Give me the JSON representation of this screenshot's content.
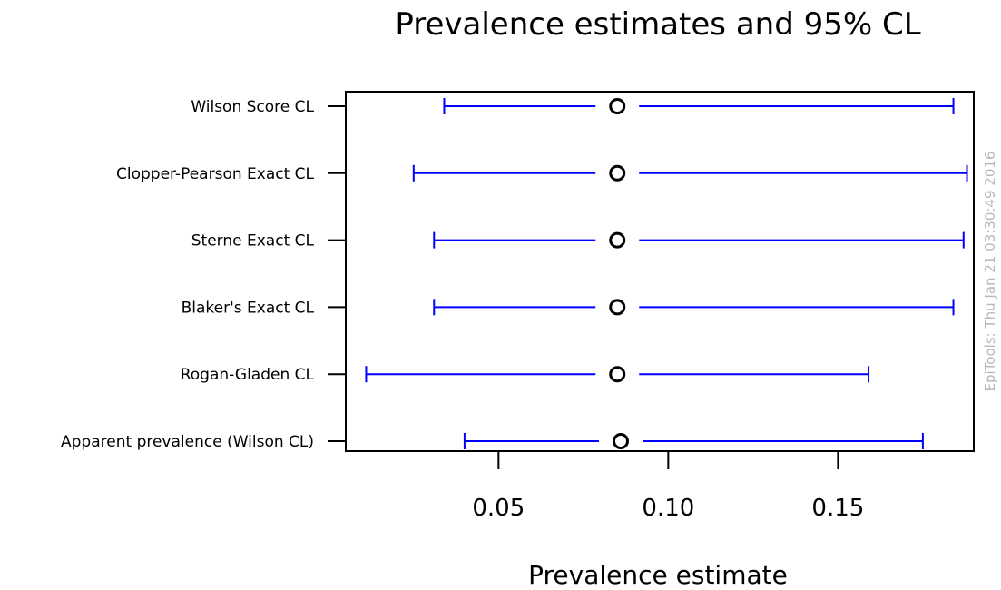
{
  "chart_data": {
    "type": "scatter",
    "title": "Prevalence estimates and 95% CL",
    "xlabel": "Prevalence estimate",
    "ylabel": "",
    "xlim": [
      0.005,
      0.19
    ],
    "xticks": [
      0.05,
      0.1,
      0.15
    ],
    "xtick_labels": [
      "0.05",
      "0.10",
      "0.15"
    ],
    "grid": false,
    "point_marker": "open-circle",
    "interval_color": "#0000ff",
    "watermark": "EpiTools: Thu Jan 21 03:30:49 2016",
    "categories": [
      "Wilson Score CL",
      "Clopper-Pearson Exact CL",
      "Sterne Exact CL",
      "Blaker's Exact CL",
      "Rogan-Gladen CL",
      "Apparent prevalence (Wilson CL)"
    ],
    "estimates": [
      0.085,
      0.085,
      0.085,
      0.085,
      0.085,
      0.086
    ],
    "lower": [
      0.034,
      0.025,
      0.031,
      0.031,
      0.011,
      0.04
    ],
    "upper": [
      0.184,
      0.188,
      0.187,
      0.184,
      0.159,
      0.175
    ]
  }
}
